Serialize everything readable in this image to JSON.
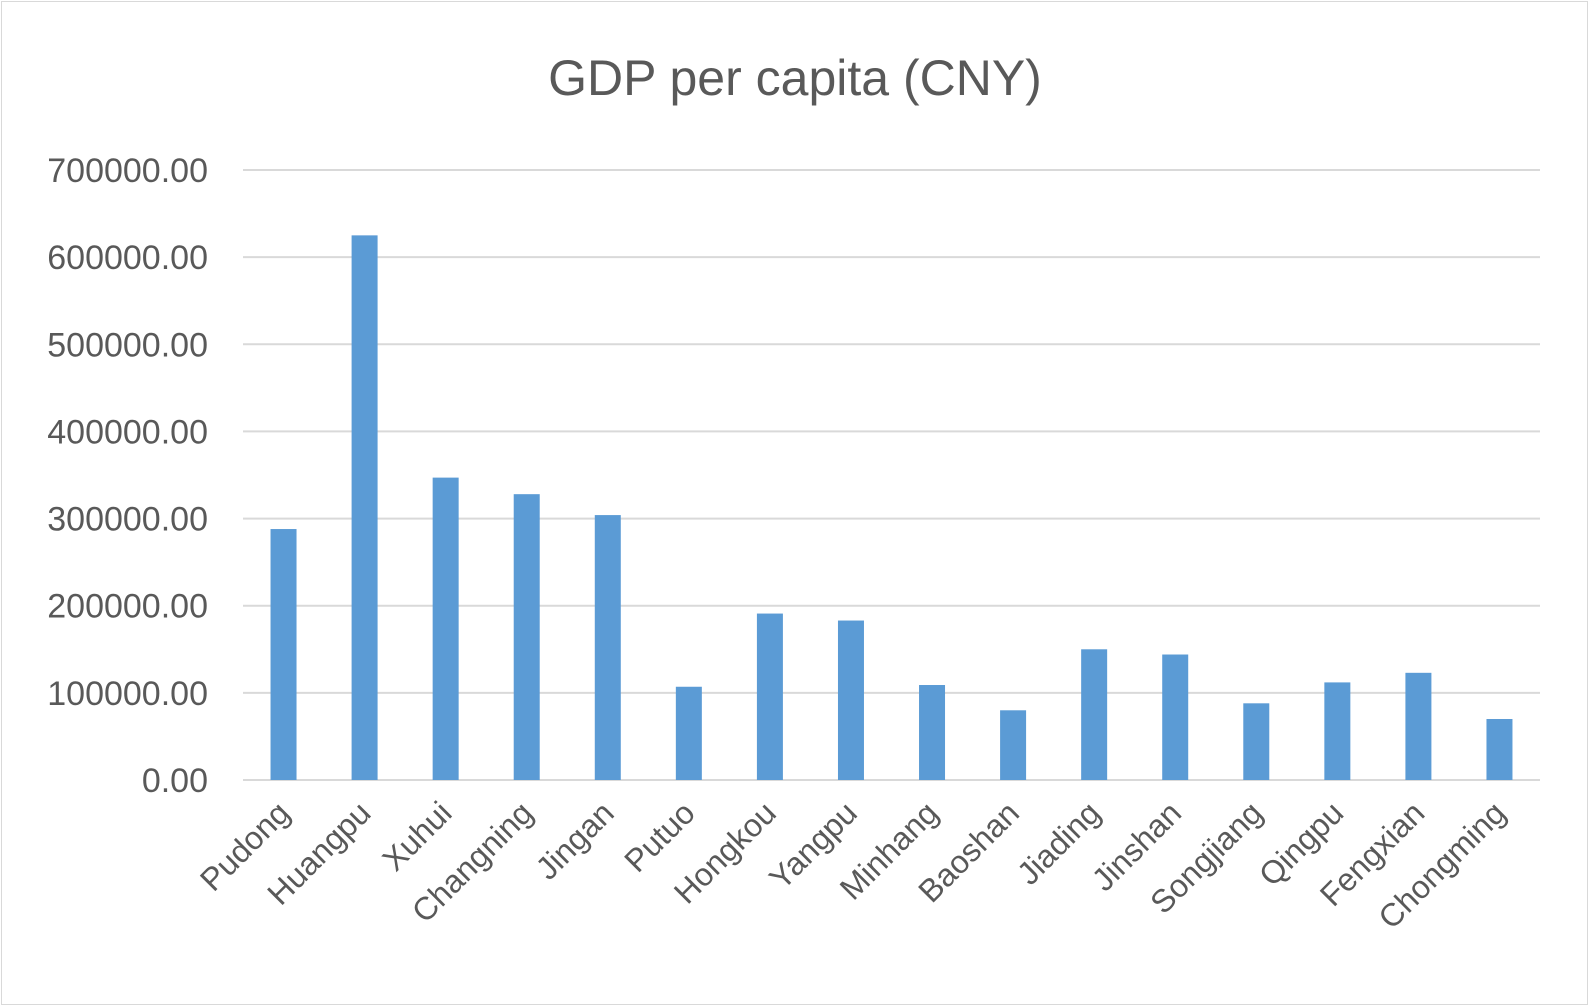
{
  "chart_data": {
    "type": "bar",
    "title": "GDP per capita (CNY)",
    "xlabel": "",
    "ylabel": "",
    "categories": [
      "Pudong",
      "Huangpu",
      "Xuhui",
      "Changning",
      "Jingan",
      "Putuo",
      "Hongkou",
      "Yangpu",
      "Minhang",
      "Baoshan",
      "Jiading",
      "Jinshan",
      "Songjiang",
      "Qingpu",
      "Fengxian",
      "Chongming"
    ],
    "values": [
      288000,
      625000,
      347000,
      328000,
      304000,
      107000,
      191000,
      183000,
      109000,
      80000,
      150000,
      144000,
      88000,
      112000,
      123000,
      70000
    ],
    "ylim": [
      0,
      700000
    ],
    "yticks": [
      "0.00",
      "100000.00",
      "200000.00",
      "300000.00",
      "400000.00",
      "500000.00",
      "600000.00",
      "700000.00"
    ],
    "grid": true,
    "legend": "none",
    "bar_color": "#5b9bd5",
    "grid_color": "#d9d9d9",
    "text_color": "#595959"
  }
}
